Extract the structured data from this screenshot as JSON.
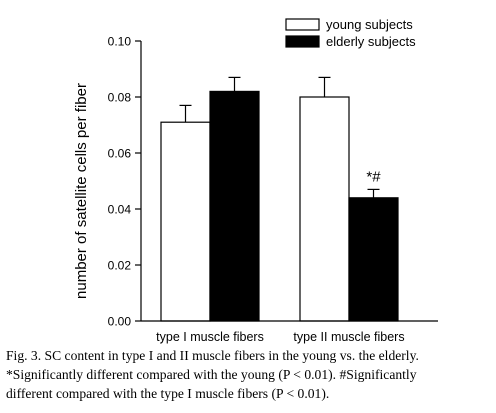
{
  "chart_data": {
    "type": "bar",
    "categories": [
      "type I muscle fibers",
      "type II muscle fibers"
    ],
    "series": [
      {
        "name": "young subjects",
        "values": [
          0.071,
          0.08
        ],
        "errors": [
          0.006,
          0.007
        ],
        "fill": "#ffffff"
      },
      {
        "name": "elderly subjects",
        "values": [
          0.082,
          0.044
        ],
        "errors": [
          0.005,
          0.003
        ],
        "fill": "#000000"
      }
    ],
    "ylabel": "number of satellite cells per fiber",
    "xlabel": "",
    "ylim": [
      0,
      0.1
    ],
    "yticks": [
      "0.00",
      "0.02",
      "0.04",
      "0.06",
      "0.08",
      "0.10"
    ],
    "legend": "top-right",
    "grid": false,
    "annotations": [
      {
        "category": 1,
        "series": 1,
        "text": "*#"
      }
    ]
  },
  "caption": {
    "line1": "Fig. 3.  SC content in type I and II muscle fibers in the young vs. the elderly.",
    "line2": "*Significantly different compared with the young (P < 0.01). #Significantly",
    "line3": "different compared with the type I muscle fibers (P < 0.01)."
  }
}
